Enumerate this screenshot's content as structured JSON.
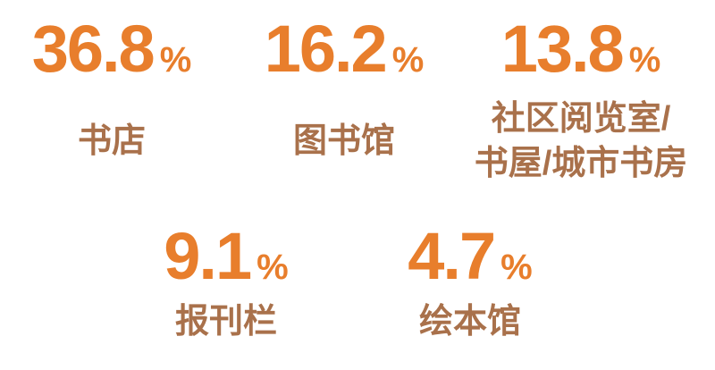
{
  "colors": {
    "value_orange": "#E87E2C",
    "label_brown": "#A9714B",
    "background": "#FFFFFF"
  },
  "items": [
    {
      "value": "36.8",
      "unit": "%",
      "label": "书店"
    },
    {
      "value": "16.2",
      "unit": "%",
      "label": "图书馆"
    },
    {
      "value": "13.8",
      "unit": "%",
      "label": "社区阅览室/",
      "label2": "书屋/城市书房"
    },
    {
      "value": "9.1",
      "unit": "%",
      "label": "报刊栏"
    },
    {
      "value": "4.7",
      "unit": "%",
      "label": "绘本馆"
    }
  ],
  "chart_data": {
    "type": "table",
    "categories": [
      "书店",
      "图书馆",
      "社区阅览室/书屋/城市书房",
      "报刊栏",
      "绘本馆"
    ],
    "values": [
      36.8,
      16.2,
      13.8,
      9.1,
      4.7
    ],
    "unit": "%",
    "title": "",
    "xlabel": "",
    "ylabel": "",
    "layout": "stat-grid: 3 items top row, 2 items bottom row, values above labels",
    "legend": "none",
    "grid": false
  }
}
